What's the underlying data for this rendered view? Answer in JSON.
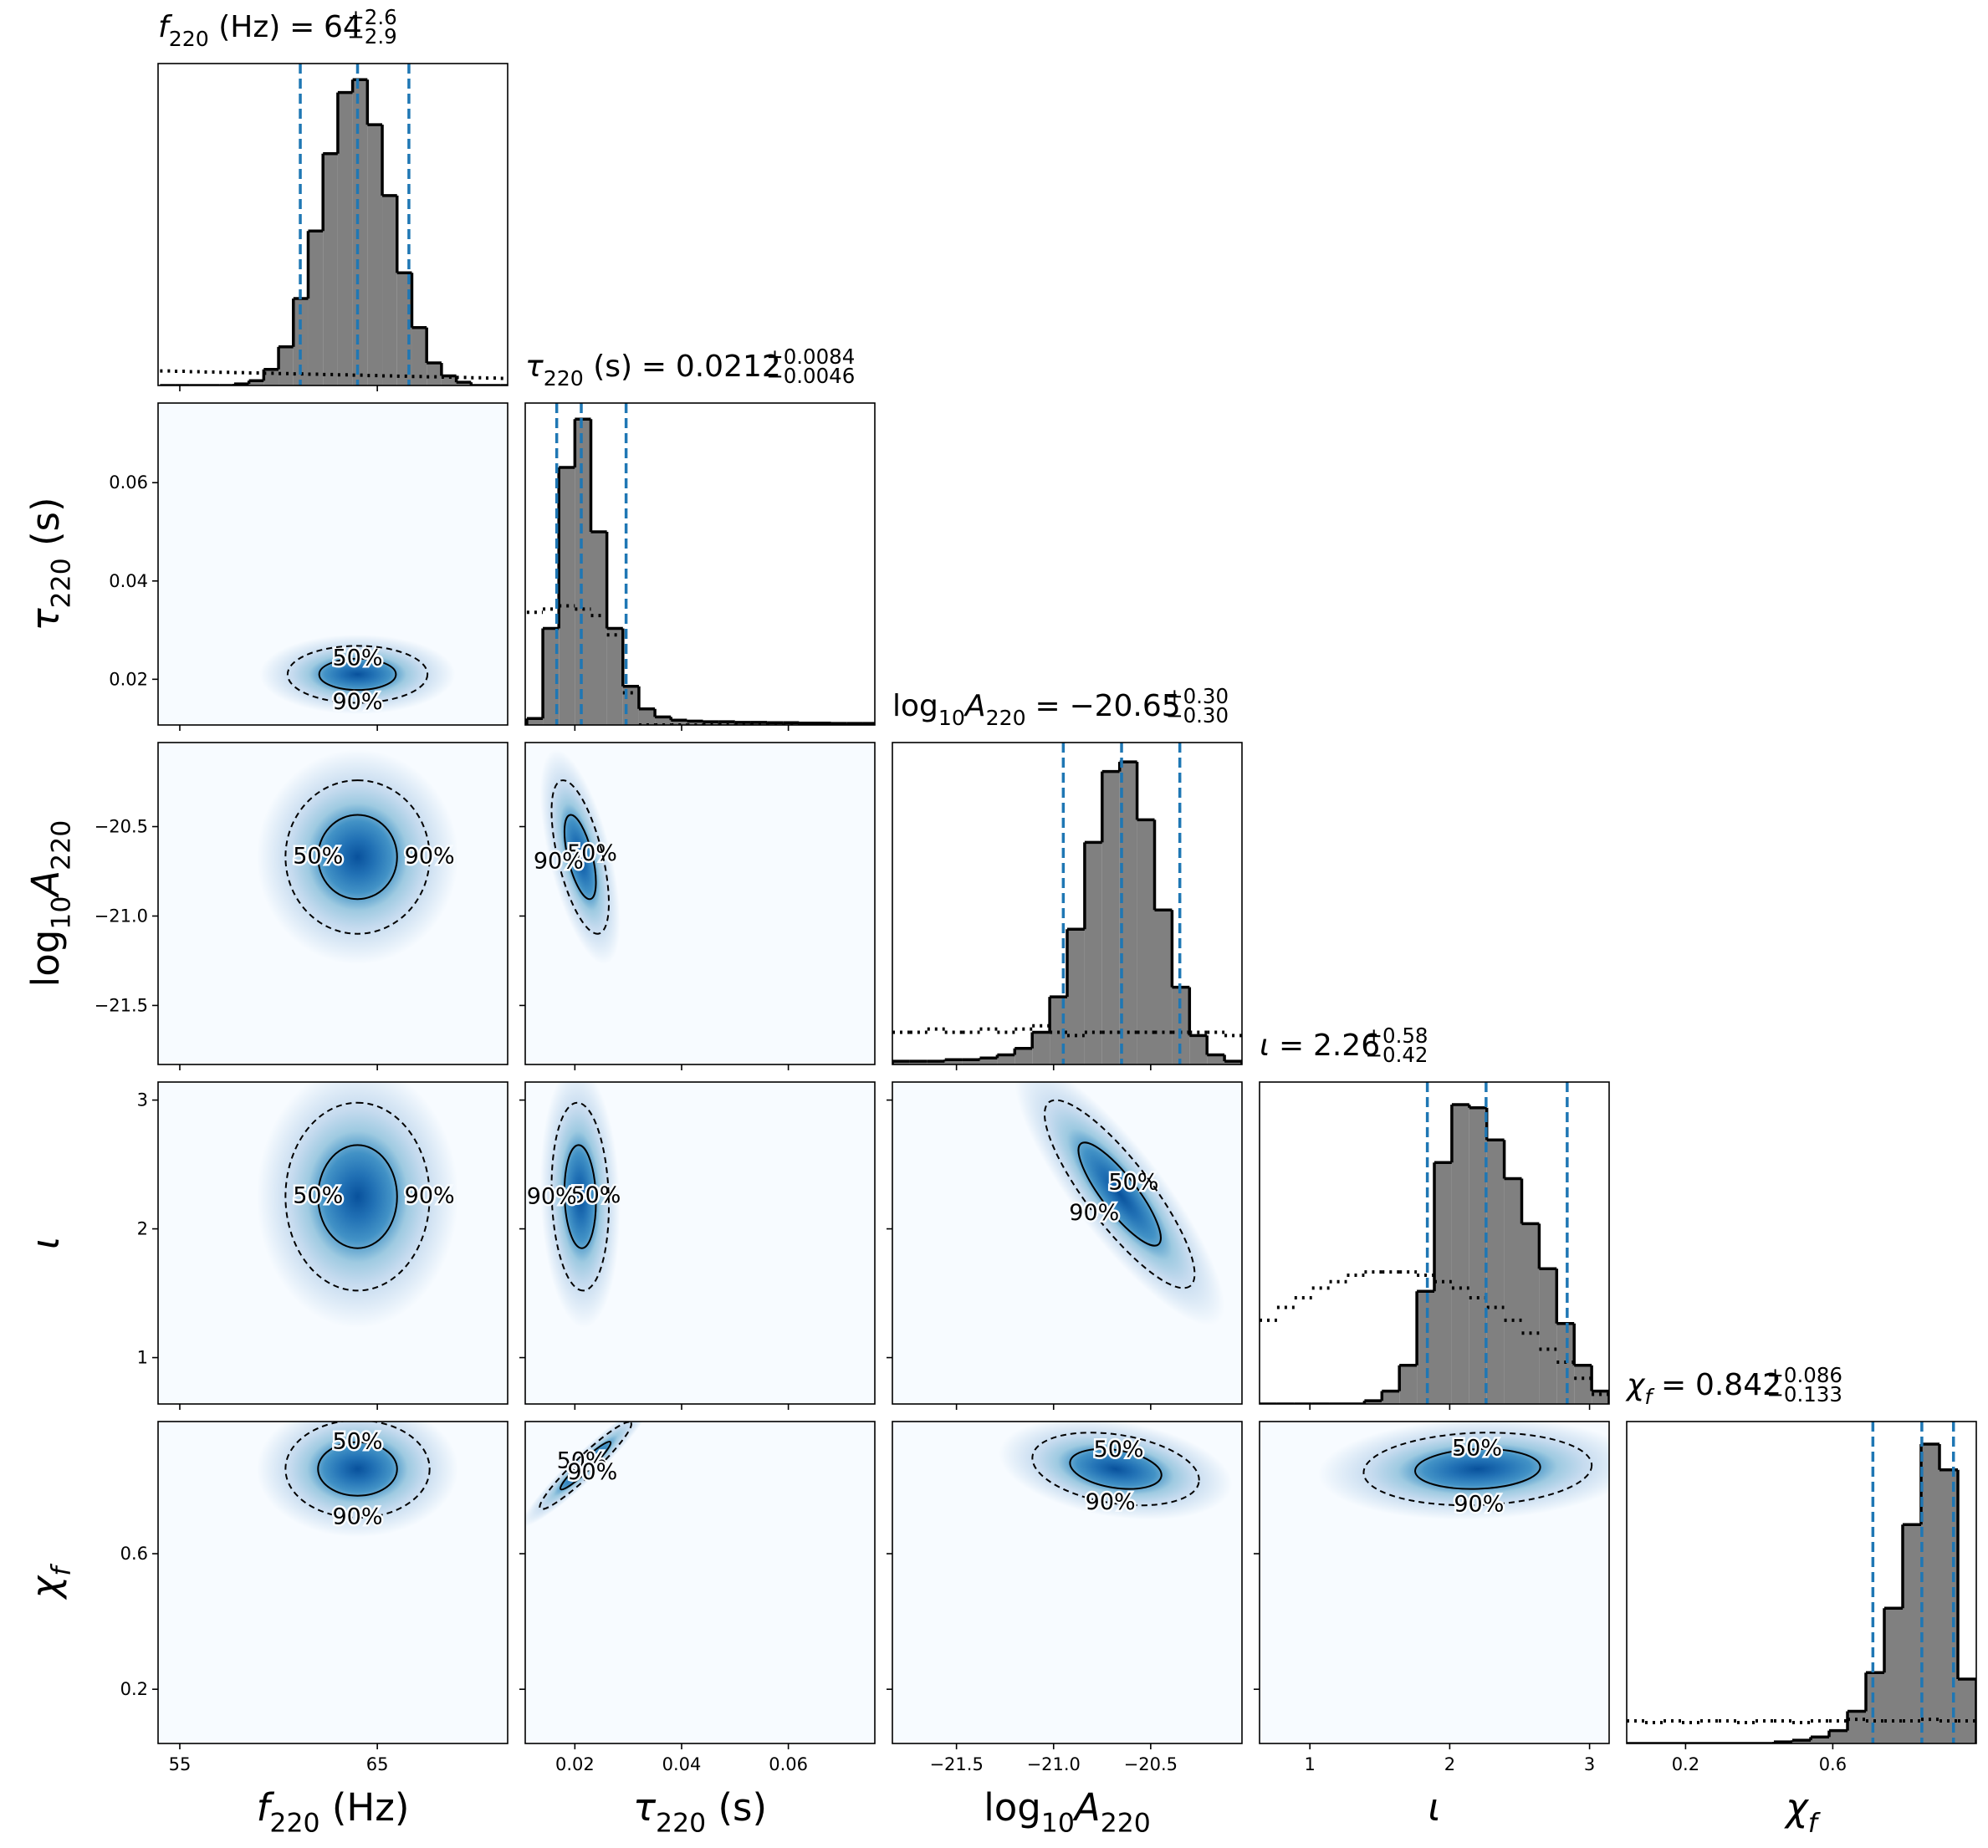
{
  "chart_data": {
    "type": "corner",
    "title_separator": "=",
    "hist_ylim": [
      0,
      1
    ],
    "hist_color": "#808080",
    "quantile_color": "#1f77b4",
    "density_colors": [
      "#f7fbff",
      "#deebf7",
      "#c6dbef",
      "#9ecae1",
      "#4292c6",
      "#2171b5",
      "#08519c"
    ],
    "contours": [
      {
        "level": 50,
        "label": "50%",
        "style": "solid"
      },
      {
        "level": 90,
        "label": "90%",
        "style": "dashed"
      }
    ],
    "parameters": [
      {
        "label": [
          {
            "text": "f",
            "italic": true
          },
          {
            "text": "220",
            "sub": true
          },
          {
            "text": " (Hz)"
          }
        ],
        "lim": [
          53.9,
          71.6
        ],
        "ticks": [
          55,
          65
        ],
        "median": 64,
        "err_plus": {
          "value": 2.6,
          "label": "+2.6"
        },
        "err_minus": {
          "value": -2.9,
          "label": "−2.9"
        },
        "bins": [
          54,
          54.75,
          55.5,
          56.25,
          57,
          57.75,
          58.5,
          59.25,
          60,
          60.75,
          61.5,
          62.25,
          63,
          63.75,
          64.5,
          65.25,
          66,
          66.75,
          67.5,
          68.25,
          69,
          69.75,
          70.5,
          71.25,
          72
        ],
        "counts": [
          0,
          0,
          0,
          0,
          0,
          0.005,
          0.015,
          0.05,
          0.12,
          0.27,
          0.48,
          0.72,
          0.91,
          0.95,
          0.81,
          0.59,
          0.35,
          0.18,
          0.07,
          0.03,
          0.01,
          0,
          0,
          0
        ],
        "prior": [
          0.045,
          0.044,
          0.043,
          0.042,
          0.041,
          0.04,
          0.039,
          0.038,
          0.037,
          0.036,
          0.035,
          0.034,
          0.033,
          0.032,
          0.031,
          0.03,
          0.029,
          0.028,
          0.027,
          0.026,
          0.025,
          0.024,
          0.023,
          0.022
        ]
      },
      {
        "label": [
          {
            "text": "τ",
            "italic": true
          },
          {
            "text": "220",
            "sub": true
          },
          {
            "text": " (s)"
          }
        ],
        "lim": [
          0.0107,
          0.0762
        ],
        "ticks": [
          0.02,
          0.04,
          0.06
        ],
        "median": 0.0212,
        "err_plus": {
          "value": 0.0084,
          "label": "+0.0084"
        },
        "err_minus": {
          "value": -0.0046,
          "label": "−0.0046"
        },
        "bins": [
          0.011,
          0.014,
          0.017,
          0.02,
          0.023,
          0.026,
          0.029,
          0.032,
          0.035,
          0.038,
          0.041,
          0.044,
          0.047,
          0.05,
          0.053,
          0.056,
          0.059,
          0.062,
          0.065,
          0.068,
          0.071,
          0.074,
          0.077
        ],
        "counts": [
          0.02,
          0.3,
          0.8,
          0.95,
          0.6,
          0.3,
          0.12,
          0.05,
          0.025,
          0.015,
          0.012,
          0.01,
          0.01,
          0.008,
          0.008,
          0.007,
          0.007,
          0.006,
          0.006,
          0.005,
          0.005,
          0.005
        ],
        "prior": [
          0.35,
          0.36,
          0.37,
          0.36,
          0.34,
          0.28,
          0.1,
          0,
          0,
          0,
          0,
          0,
          0,
          0,
          0,
          0,
          0,
          0,
          0,
          0,
          0,
          0
        ]
      },
      {
        "label": [
          {
            "text": "log"
          },
          {
            "text": "10",
            "sub": true
          },
          {
            "text": "A",
            "italic": true
          },
          {
            "text": "220",
            "sub": true
          }
        ],
        "lim": [
          -21.83,
          -20.03
        ],
        "ticks": [
          {
            "value": -21.5,
            "label": "−21.5"
          },
          {
            "value": -21,
            "label": "−21.0"
          },
          {
            "value": -20.5,
            "label": "−20.5"
          }
        ],
        "median": {
          "value": -20.65,
          "label": "−20.65"
        },
        "err_plus": {
          "value": 0.3,
          "label": "+0.30"
        },
        "err_minus": {
          "value": -0.3,
          "label": "−0.30"
        },
        "bins": [
          -21.83,
          -21.74,
          -21.65,
          -21.56,
          -21.47,
          -21.38,
          -21.29,
          -21.2,
          -21.11,
          -21.02,
          -20.93,
          -20.84,
          -20.75,
          -20.66,
          -20.57,
          -20.48,
          -20.39,
          -20.3,
          -20.21,
          -20.12,
          -20.03
        ],
        "counts": [
          0.01,
          0.01,
          0.01,
          0.015,
          0.015,
          0.02,
          0.03,
          0.05,
          0.1,
          0.21,
          0.42,
          0.69,
          0.91,
          0.94,
          0.76,
          0.48,
          0.24,
          0.09,
          0.03,
          0.01
        ],
        "prior": [
          0.1,
          0.1,
          0.11,
          0.1,
          0.1,
          0.11,
          0.1,
          0.11,
          0.12,
          0.1,
          0.09,
          0.1,
          0.1,
          0.1,
          0.1,
          0.1,
          0.1,
          0.1,
          0.1,
          0.09
        ]
      },
      {
        "label": [
          {
            "text": "ι",
            "italic": true
          }
        ],
        "lim": [
          0.64,
          3.14
        ],
        "ticks": [
          1,
          2,
          3
        ],
        "median": 2.26,
        "err_plus": {
          "value": 0.58,
          "label": "+0.58"
        },
        "err_minus": {
          "value": -0.42,
          "label": "−0.42"
        },
        "bins": [
          0.64,
          0.765,
          0.89,
          1.015,
          1.14,
          1.265,
          1.39,
          1.515,
          1.64,
          1.765,
          1.89,
          2.015,
          2.14,
          2.265,
          2.39,
          2.515,
          2.64,
          2.765,
          2.89,
          3.015,
          3.14
        ],
        "counts": [
          0,
          0,
          0,
          0,
          0,
          0,
          0.01,
          0.04,
          0.12,
          0.35,
          0.75,
          0.93,
          0.92,
          0.82,
          0.7,
          0.56,
          0.42,
          0.25,
          0.12,
          0.04
        ],
        "prior": [
          0.26,
          0.3,
          0.33,
          0.36,
          0.38,
          0.4,
          0.41,
          0.41,
          0.41,
          0.4,
          0.38,
          0.36,
          0.33,
          0.3,
          0.26,
          0.22,
          0.17,
          0.13,
          0.08,
          0.03
        ]
      },
      {
        "label": [
          {
            "text": "χ",
            "italic": true
          },
          {
            "text": "f",
            "sub": true,
            "italic": true
          }
        ],
        "lim": [
          0.04,
          0.99
        ],
        "ticks": [
          0.2,
          0.6
        ],
        "median": 0.842,
        "err_plus": {
          "value": 0.086,
          "label": "+0.086"
        },
        "err_minus": {
          "value": -0.133,
          "label": "−0.133"
        },
        "bins": [
          0.04,
          0.09,
          0.14,
          0.19,
          0.24,
          0.29,
          0.34,
          0.39,
          0.44,
          0.49,
          0.54,
          0.59,
          0.64,
          0.69,
          0.74,
          0.79,
          0.84,
          0.89,
          0.94,
          0.99
        ],
        "counts": [
          0,
          0,
          0,
          0,
          0,
          0,
          0,
          0,
          0.005,
          0.01,
          0.02,
          0.04,
          0.1,
          0.22,
          0.42,
          0.68,
          0.93,
          0.85,
          0.2
        ],
        "prior": [
          0.07,
          0.065,
          0.07,
          0.065,
          0.07,
          0.07,
          0.065,
          0.07,
          0.07,
          0.065,
          0.07,
          0.07,
          0.075,
          0.07,
          0.07,
          0.07,
          0.075,
          0.07,
          0.07
        ]
      }
    ],
    "pairs": [
      {
        "mean": [
          64,
          0.021
        ],
        "sd": [
          1.65,
          0.0027
        ],
        "rho": 0
      },
      {
        "mean": [
          64,
          -20.67
        ],
        "sd": [
          1.7,
          0.2
        ],
        "rho": 0
      },
      {
        "mean": [
          0.021,
          -20.67
        ],
        "sd": [
          0.0025,
          0.2
        ],
        "rho": -0.6
      },
      {
        "mean": [
          64,
          2.25
        ],
        "sd": [
          1.7,
          0.34
        ],
        "rho": 0
      },
      {
        "mean": [
          0.021,
          2.25
        ],
        "sd": [
          0.0025,
          0.34
        ],
        "rho": -0.1
      },
      {
        "mean": [
          -20.66,
          2.27
        ],
        "sd": [
          0.18,
          0.34
        ],
        "rho": -0.85
      },
      {
        "mean": [
          64,
          0.85
        ],
        "sd": [
          1.7,
          0.067
        ],
        "rho": 0
      },
      {
        "mean": [
          0.022,
          0.86
        ],
        "sd": [
          0.004,
          0.06
        ],
        "rho": 0.95
      },
      {
        "mean": [
          -20.68,
          0.85
        ],
        "sd": [
          0.2,
          0.05
        ],
        "rho": -0.3
      },
      {
        "mean": [
          2.2,
          0.85
        ],
        "sd": [
          0.38,
          0.05
        ],
        "rho": 0.1
      }
    ]
  }
}
